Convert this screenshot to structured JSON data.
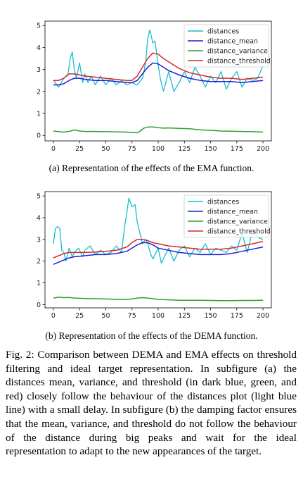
{
  "figure": {
    "subcaption_a": "(a) Representation of the effects of the EMA function.",
    "subcaption_b": "(b) Representation of the effects of the DEMA function.",
    "caption": "Fig. 2: Comparison between DEMA and EMA effects on threshold filtering and ideal target representation. In subfigure (a) the distances mean, variance, and threshold (in dark blue, green, and red) closely follow the behaviour of the distances plot (light blue line) with a small delay. In subfigure (b) the damping factor ensures that the mean, variance, and threshold do not follow the behaviour of the distance during big peaks and wait for the ideal representation to adapt to the new appearances of the target."
  },
  "chart_data": [
    {
      "type": "line",
      "title": "",
      "xlabel": "",
      "ylabel": "",
      "xlim": [
        -8,
        208
      ],
      "ylim": [
        -0.25,
        5.2
      ],
      "xticks": [
        0,
        25,
        50,
        75,
        100,
        125,
        150,
        175,
        200
      ],
      "yticks": [
        0,
        1,
        2,
        3,
        4,
        5
      ],
      "legend_position": "top-right",
      "series": [
        {
          "name": "distances",
          "color": "#17becf",
          "x": [
            0,
            5,
            10,
            14,
            16,
            18,
            20,
            22,
            25,
            28,
            30,
            33,
            36,
            40,
            45,
            50,
            55,
            60,
            65,
            70,
            75,
            80,
            85,
            88,
            90,
            92,
            95,
            97,
            100,
            102,
            105,
            110,
            115,
            120,
            125,
            130,
            135,
            140,
            145,
            150,
            155,
            160,
            165,
            170,
            175,
            180,
            185,
            190,
            195,
            200
          ],
          "y": [
            2.5,
            2.2,
            2.6,
            2.8,
            3.5,
            3.8,
            3.0,
            2.6,
            3.3,
            2.4,
            2.8,
            2.4,
            2.7,
            2.3,
            2.7,
            2.3,
            2.6,
            2.3,
            2.5,
            2.3,
            2.4,
            2.3,
            2.6,
            3.3,
            4.4,
            4.8,
            4.2,
            4.3,
            3.2,
            2.6,
            2.0,
            2.9,
            2.0,
            2.4,
            2.9,
            2.4,
            3.1,
            2.7,
            2.2,
            2.7,
            2.4,
            2.9,
            2.1,
            2.6,
            2.9,
            2.2,
            2.6,
            2.5,
            2.6,
            3.2
          ]
        },
        {
          "name": "distance_mean",
          "color": "#1f1fd6",
          "x": [
            0,
            5,
            10,
            15,
            20,
            25,
            30,
            40,
            50,
            60,
            70,
            75,
            80,
            85,
            90,
            95,
            100,
            105,
            110,
            120,
            130,
            140,
            150,
            160,
            170,
            180,
            190,
            200
          ],
          "y": [
            2.3,
            2.3,
            2.35,
            2.5,
            2.6,
            2.6,
            2.55,
            2.5,
            2.5,
            2.45,
            2.4,
            2.4,
            2.5,
            2.8,
            3.1,
            3.3,
            3.25,
            3.1,
            2.95,
            2.75,
            2.6,
            2.5,
            2.45,
            2.45,
            2.45,
            2.4,
            2.45,
            2.5
          ]
        },
        {
          "name": "distance_variance",
          "color": "#2ca02c",
          "x": [
            0,
            10,
            15,
            20,
            25,
            30,
            40,
            50,
            60,
            70,
            75,
            80,
            83,
            86,
            90,
            95,
            100,
            105,
            110,
            120,
            130,
            140,
            150,
            160,
            170,
            180,
            190,
            200
          ],
          "y": [
            0.2,
            0.15,
            0.18,
            0.25,
            0.2,
            0.18,
            0.18,
            0.17,
            0.16,
            0.15,
            0.13,
            0.12,
            0.2,
            0.32,
            0.38,
            0.38,
            0.35,
            0.33,
            0.34,
            0.32,
            0.3,
            0.25,
            0.23,
            0.2,
            0.19,
            0.18,
            0.17,
            0.15
          ]
        },
        {
          "name": "distance_threshold",
          "color": "#d62728",
          "x": [
            0,
            5,
            10,
            15,
            20,
            25,
            30,
            40,
            50,
            60,
            70,
            75,
            80,
            85,
            90,
            95,
            100,
            105,
            110,
            120,
            130,
            140,
            150,
            160,
            170,
            180,
            190,
            200
          ],
          "y": [
            2.5,
            2.5,
            2.6,
            2.8,
            2.8,
            2.75,
            2.7,
            2.65,
            2.6,
            2.55,
            2.5,
            2.5,
            2.7,
            3.1,
            3.5,
            3.75,
            3.7,
            3.5,
            3.35,
            3.05,
            2.85,
            2.75,
            2.65,
            2.6,
            2.6,
            2.55,
            2.6,
            2.65
          ]
        }
      ]
    },
    {
      "type": "line",
      "title": "",
      "xlabel": "",
      "ylabel": "",
      "xlim": [
        -8,
        208
      ],
      "ylim": [
        -0.15,
        5.2
      ],
      "xticks": [
        0,
        25,
        50,
        75,
        100,
        125,
        150,
        175,
        200
      ],
      "yticks": [
        0,
        1,
        2,
        3,
        4,
        5
      ],
      "legend_position": "top-right",
      "series": [
        {
          "name": "distances",
          "color": "#17becf",
          "x": [
            0,
            2,
            4,
            6,
            8,
            10,
            12,
            15,
            18,
            20,
            24,
            28,
            30,
            35,
            40,
            45,
            50,
            55,
            60,
            65,
            68,
            70,
            72,
            75,
            78,
            80,
            83,
            85,
            88,
            90,
            93,
            95,
            100,
            103,
            106,
            110,
            115,
            120,
            125,
            130,
            135,
            140,
            145,
            150,
            155,
            160,
            165,
            170,
            175,
            180,
            185,
            190,
            195,
            200
          ],
          "y": [
            2.8,
            3.5,
            3.6,
            3.5,
            2.5,
            2.4,
            2.0,
            2.6,
            2.2,
            2.4,
            2.6,
            2.2,
            2.5,
            2.7,
            2.3,
            2.5,
            2.3,
            2.4,
            2.7,
            2.4,
            3.6,
            4.2,
            4.9,
            4.5,
            4.6,
            3.8,
            3.2,
            2.8,
            3.0,
            2.8,
            2.3,
            2.1,
            2.6,
            1.9,
            2.2,
            2.6,
            2.0,
            2.5,
            2.7,
            2.2,
            2.6,
            2.4,
            2.8,
            2.3,
            2.6,
            2.5,
            2.4,
            2.7,
            2.5,
            3.3,
            2.4,
            3.4,
            3.1,
            3.0
          ]
        },
        {
          "name": "distance_mean",
          "color": "#1f1fd6",
          "x": [
            0,
            5,
            10,
            15,
            20,
            30,
            40,
            50,
            60,
            70,
            75,
            80,
            85,
            90,
            95,
            100,
            110,
            120,
            130,
            140,
            150,
            160,
            170,
            180,
            190,
            200
          ],
          "y": [
            1.85,
            1.95,
            2.05,
            2.15,
            2.2,
            2.25,
            2.3,
            2.3,
            2.35,
            2.45,
            2.6,
            2.75,
            2.85,
            2.85,
            2.75,
            2.6,
            2.5,
            2.4,
            2.35,
            2.3,
            2.3,
            2.3,
            2.35,
            2.45,
            2.55,
            2.65
          ]
        },
        {
          "name": "distance_variance",
          "color": "#2ca02c",
          "x": [
            0,
            5,
            10,
            15,
            20,
            30,
            40,
            50,
            60,
            70,
            75,
            80,
            85,
            90,
            95,
            100,
            110,
            120,
            130,
            140,
            150,
            160,
            170,
            180,
            190,
            200
          ],
          "y": [
            0.3,
            0.34,
            0.32,
            0.33,
            0.3,
            0.28,
            0.27,
            0.26,
            0.24,
            0.24,
            0.26,
            0.3,
            0.32,
            0.3,
            0.27,
            0.24,
            0.22,
            0.2,
            0.2,
            0.2,
            0.19,
            0.18,
            0.18,
            0.19,
            0.19,
            0.2
          ]
        },
        {
          "name": "distance_threshold",
          "color": "#d62728",
          "x": [
            0,
            5,
            10,
            15,
            20,
            30,
            40,
            50,
            60,
            70,
            75,
            80,
            85,
            90,
            95,
            100,
            110,
            120,
            130,
            140,
            150,
            160,
            170,
            180,
            190,
            200
          ],
          "y": [
            2.15,
            2.25,
            2.35,
            2.4,
            2.4,
            2.4,
            2.42,
            2.45,
            2.5,
            2.65,
            2.85,
            3.0,
            3.0,
            2.95,
            2.85,
            2.8,
            2.7,
            2.65,
            2.6,
            2.55,
            2.55,
            2.55,
            2.6,
            2.7,
            2.8,
            2.9
          ]
        }
      ]
    }
  ]
}
